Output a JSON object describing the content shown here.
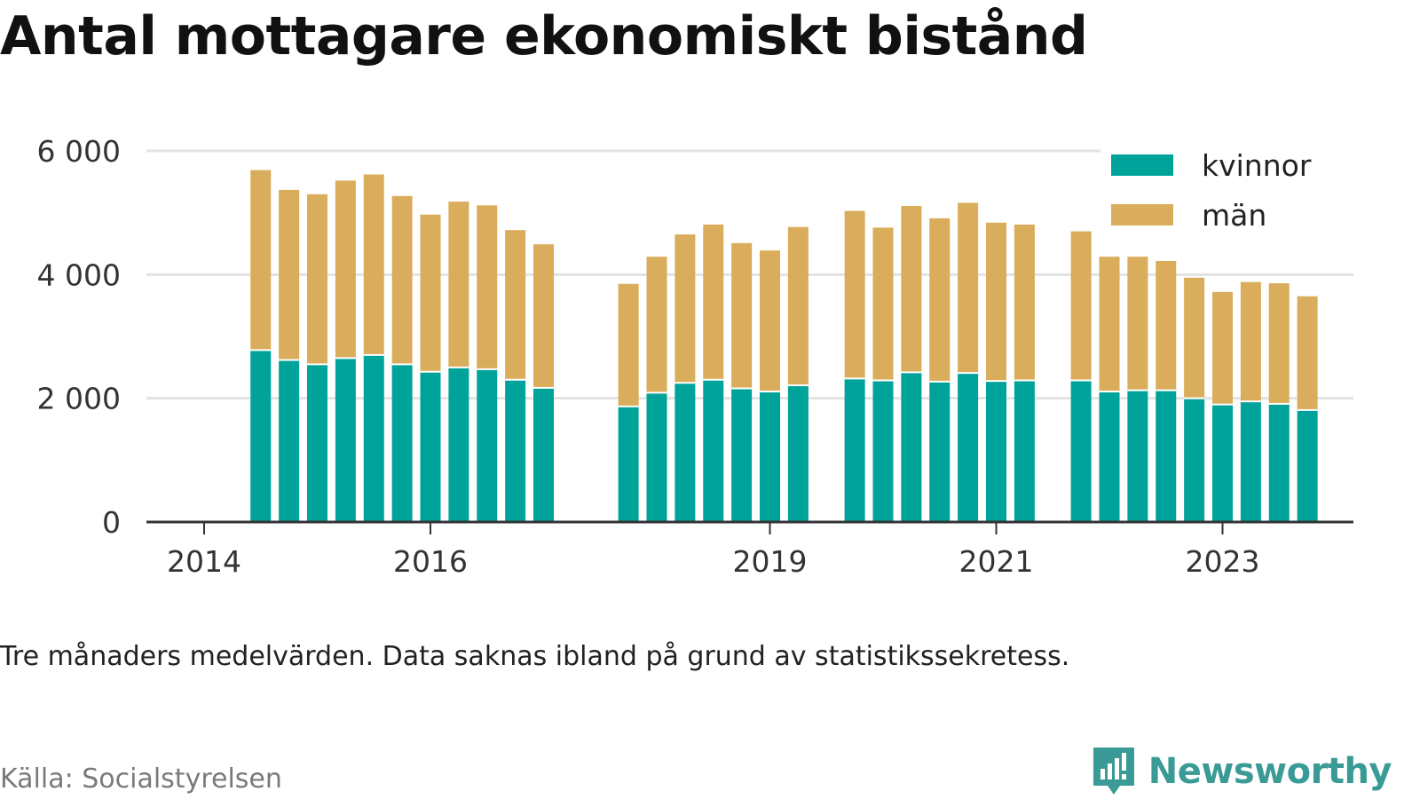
{
  "title": "Antal mottagare ekonomiskt bistånd",
  "note": "Tre månaders medelvärden. Data saknas ibland på grund av statistikssekretess.",
  "source": "Källa: Socialstyrelsen",
  "brand": {
    "name": "Newsworthy",
    "icon": "newsworthy-logo-icon"
  },
  "colors": {
    "kvinnor": "#00a39a",
    "man": "#d9ad5b",
    "grid": "#e3e3e3",
    "axis": "#333333"
  },
  "chart_data": {
    "type": "bar",
    "stacked": true,
    "ylim": [
      0,
      6000
    ],
    "yticks": [
      {
        "value": 0,
        "label": "0"
      },
      {
        "value": 2000,
        "label": "2 000"
      },
      {
        "value": 4000,
        "label": "4 000"
      },
      {
        "value": 6000,
        "label": "6 000"
      }
    ],
    "xticks": [
      {
        "value": 2014,
        "label": "2014"
      },
      {
        "value": 2016,
        "label": "2016"
      },
      {
        "value": 2019,
        "label": "2019"
      },
      {
        "value": 2021,
        "label": "2021"
      },
      {
        "value": 2023,
        "label": "2023"
      }
    ],
    "grid": true,
    "legend_position": "top-right",
    "x": [
      2014.5,
      2014.75,
      2015.0,
      2015.25,
      2015.5,
      2015.75,
      2016.0,
      2016.25,
      2016.5,
      2016.75,
      2017.0,
      2017.75,
      2018.0,
      2018.25,
      2018.5,
      2018.75,
      2019.0,
      2019.25,
      2019.75,
      2020.0,
      2020.25,
      2020.5,
      2020.75,
      2021.0,
      2021.25,
      2021.75,
      2022.0,
      2022.25,
      2022.5,
      2022.75,
      2023.0,
      2023.25,
      2023.5,
      2023.75
    ],
    "series": [
      {
        "name": "kvinnor",
        "values": [
          2780,
          2620,
          2550,
          2650,
          2700,
          2550,
          2430,
          2500,
          2470,
          2300,
          2170,
          1870,
          2090,
          2250,
          2300,
          2160,
          2110,
          2210,
          2320,
          2290,
          2420,
          2270,
          2410,
          2280,
          2290,
          2290,
          2110,
          2130,
          2130,
          2000,
          1900,
          1950,
          1910,
          1810
        ]
      },
      {
        "name": "män",
        "values": [
          2910,
          2750,
          2750,
          2870,
          2920,
          2720,
          2540,
          2680,
          2650,
          2420,
          2320,
          1980,
          2200,
          2400,
          2510,
          2350,
          2280,
          2560,
          2710,
          2470,
          2690,
          2640,
          2750,
          2560,
          2520,
          2410,
          2180,
          2160,
          2090,
          1950,
          1820,
          1930,
          1950,
          1840
        ]
      }
    ]
  }
}
